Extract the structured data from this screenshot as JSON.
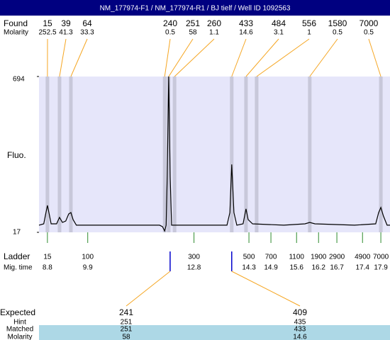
{
  "title": "NM_177974-F1  / NM_177974-R1  / BJ tielf / Well ID 1092563",
  "found": {
    "label": "Found",
    "molarity_label": "Molarity",
    "sizes": [
      15,
      39,
      64,
      240,
      251,
      260,
      433,
      484,
      556,
      1580,
      7000
    ],
    "molarity": [
      252.5,
      41.3,
      33.3,
      0.5,
      58,
      1.1,
      14.6,
      3.1,
      1,
      0.5,
      0.5
    ]
  },
  "chart_data": {
    "type": "line",
    "y_label": "Fluo.",
    "x": [
      8.57,
      8.7,
      8.76,
      8.8,
      8.84,
      8.9,
      9.05,
      9.13,
      9.21,
      9.3,
      9.38,
      9.44,
      9.5,
      9.59,
      10.41,
      11.38,
      11.86,
      11.94,
      12.0,
      12.04,
      12.07,
      12.11,
      12.15,
      12.19,
      12.34,
      13.31,
      13.7,
      13.78,
      13.83,
      13.89,
      13.97,
      14.14,
      14.22,
      14.28,
      14.4,
      15.25,
      15.83,
      15.96,
      16.1,
      17.18,
      17.76,
      17.84,
      17.9,
      17.97,
      18.07,
      18.15
    ],
    "values": [
      48,
      54,
      103,
      134,
      103,
      54,
      54,
      82,
      60,
      66,
      97,
      103,
      72,
      48,
      48,
      48,
      48,
      42,
      23,
      48,
      257,
      694,
      257,
      48,
      48,
      48,
      48,
      103,
      312,
      103,
      48,
      54,
      119,
      72,
      54,
      48,
      54,
      60,
      54,
      48,
      54,
      103,
      125,
      88,
      48,
      48
    ],
    "color": "#000000",
    "background": "#e6e6fa",
    "band_color": "#c8c8da",
    "xlim": [
      8.57,
      18.15
    ],
    "ylim": [
      17,
      694
    ],
    "yticks": [
      17,
      694
    ],
    "peak_times": [
      8.8,
      9.13,
      9.44,
      12.0,
      12.11,
      12.27,
      13.83,
      14.22,
      14.51,
      15.96,
      17.9
    ]
  },
  "ladder": {
    "label": "Ladder",
    "time_label": "Mig. time",
    "sizes": [
      15,
      100,
      300,
      500,
      700,
      1100,
      1900,
      2900,
      4900,
      7000
    ],
    "mig_times": [
      8.8,
      9.9,
      12.8,
      14.3,
      14.9,
      15.6,
      16.2,
      16.7,
      17.4,
      17.9
    ]
  },
  "expected_table": {
    "row_labels": [
      "Expected",
      "Hint",
      "Matched",
      "Molarity"
    ],
    "columns": [
      [
        241,
        251,
        251,
        58
      ],
      [
        409,
        435,
        433,
        14.6
      ]
    ]
  }
}
